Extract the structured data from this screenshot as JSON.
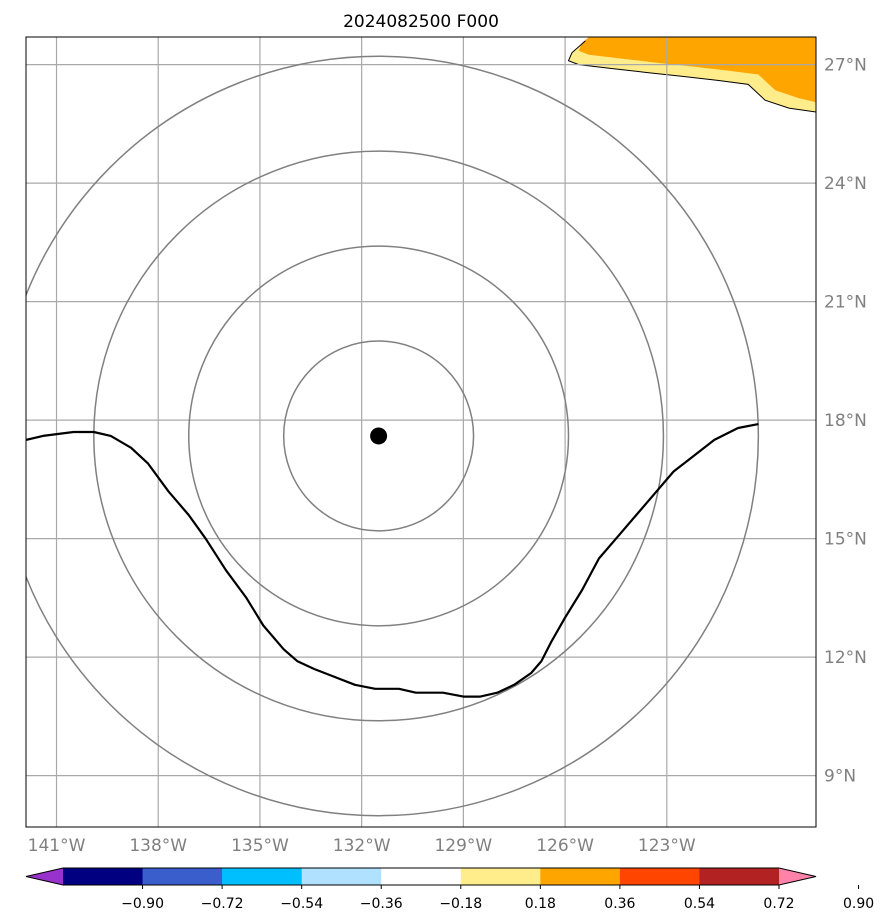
{
  "title": "2024082500 F000",
  "map": {
    "lon_range": [
      -141.9,
      -118.6
    ],
    "lat_range": [
      7.7,
      27.7
    ],
    "lon_ticks": [
      {
        "value": -141,
        "label": "141°W"
      },
      {
        "value": -138,
        "label": "138°W"
      },
      {
        "value": -135,
        "label": "135°W"
      },
      {
        "value": -132,
        "label": "132°W"
      },
      {
        "value": -129,
        "label": "129°W"
      },
      {
        "value": -126,
        "label": "126°W"
      },
      {
        "value": -123,
        "label": "123°W"
      }
    ],
    "lat_ticks": [
      {
        "value": 9,
        "label": "9°N"
      },
      {
        "value": 12,
        "label": "12°N"
      },
      {
        "value": 15,
        "label": "15°N"
      },
      {
        "value": 18,
        "label": "18°N"
      },
      {
        "value": 21,
        "label": "21°N"
      },
      {
        "value": 24,
        "label": "24°N"
      },
      {
        "value": 27,
        "label": "27°N"
      }
    ],
    "grid": true,
    "center": {
      "lon": -131.5,
      "lat": 17.6
    },
    "range_rings_deg": [
      2.8,
      5.6,
      8.4,
      11.2
    ],
    "black_contour": [
      [
        -141.9,
        17.5
      ],
      [
        -141.4,
        17.6
      ],
      [
        -140.5,
        17.7
      ],
      [
        -139.9,
        17.7
      ],
      [
        -139.4,
        17.6
      ],
      [
        -138.8,
        17.3
      ],
      [
        -138.3,
        16.9
      ],
      [
        -137.7,
        16.2
      ],
      [
        -137.1,
        15.6
      ],
      [
        -136.6,
        15.0
      ],
      [
        -136.0,
        14.2
      ],
      [
        -135.4,
        13.5
      ],
      [
        -134.9,
        12.8
      ],
      [
        -134.3,
        12.2
      ],
      [
        -133.9,
        11.9
      ],
      [
        -133.4,
        11.7
      ],
      [
        -132.8,
        11.5
      ],
      [
        -132.2,
        11.3
      ],
      [
        -131.6,
        11.2
      ],
      [
        -130.9,
        11.2
      ],
      [
        -130.4,
        11.1
      ],
      [
        -129.6,
        11.1
      ],
      [
        -129.0,
        11.0
      ],
      [
        -128.5,
        11.0
      ],
      [
        -128.0,
        11.1
      ],
      [
        -127.5,
        11.3
      ],
      [
        -127.0,
        11.6
      ],
      [
        -126.7,
        11.9
      ],
      [
        -126.4,
        12.4
      ],
      [
        -126.0,
        13.0
      ],
      [
        -125.5,
        13.7
      ],
      [
        -125.0,
        14.5
      ],
      [
        -124.5,
        15.0
      ],
      [
        -123.9,
        15.6
      ],
      [
        -123.4,
        16.1
      ],
      [
        -122.8,
        16.7
      ],
      [
        -122.2,
        17.1
      ],
      [
        -121.6,
        17.5
      ],
      [
        -120.9,
        17.8
      ],
      [
        -120.3,
        17.9
      ]
    ],
    "coast_polygon": [
      [
        -125.0,
        27.7
      ],
      [
        -118.6,
        27.7
      ],
      [
        -118.6,
        25.8
      ],
      [
        -119.4,
        25.9
      ],
      [
        -120.1,
        26.1
      ],
      [
        -120.6,
        26.5
      ],
      [
        -121.5,
        26.6
      ],
      [
        -122.5,
        26.7
      ],
      [
        -123.6,
        26.8
      ],
      [
        -124.6,
        26.9
      ],
      [
        -125.6,
        27.0
      ],
      [
        -125.9,
        27.1
      ],
      [
        -125.8,
        27.3
      ],
      [
        -125.4,
        27.6
      ]
    ],
    "coast_color": "#ffec8b",
    "contour_fill_value": 0.45
  },
  "colorbar": {
    "ticks": [
      "−0.90",
      "−0.72",
      "−0.54",
      "−0.36",
      "−0.18",
      "0.18",
      "0.36",
      "0.54",
      "0.72",
      "0.90"
    ],
    "colors": [
      "#9932cc",
      "#000080",
      "#3a5fcd",
      "#00bfff",
      "#b0e2ff",
      "#ffffff",
      "#ffec8b",
      "#ffa500",
      "#ff4500",
      "#b22222",
      "#ff82ab"
    ]
  }
}
